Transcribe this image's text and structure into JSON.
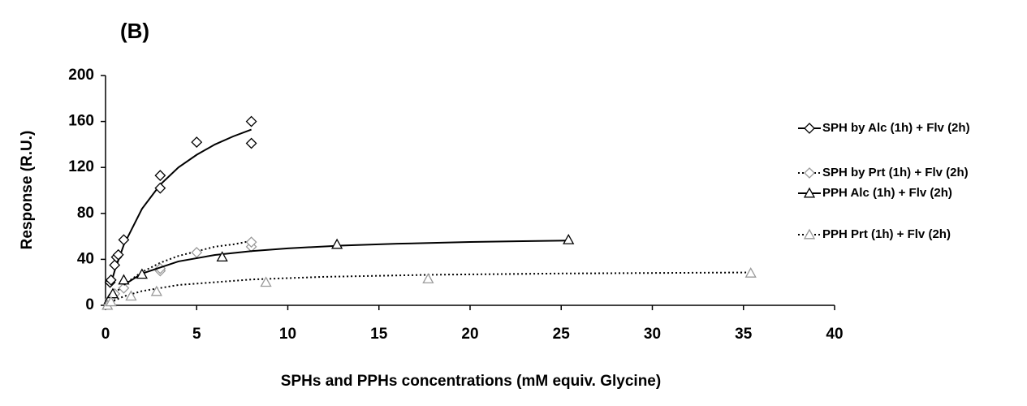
{
  "chart_data": {
    "type": "scatter",
    "title": "(B)",
    "x_label": "SPHs and PPHs concentrations  (mM equiv. Glycine)",
    "y_label": "Response (R.U.)",
    "xlim": [
      0,
      40
    ],
    "xticks": [
      0,
      5,
      10,
      15,
      20,
      25,
      30,
      35,
      40
    ],
    "ylim": [
      0,
      200
    ],
    "yticks": [
      0,
      40,
      80,
      120,
      160,
      200
    ],
    "grid": false,
    "legend": "right",
    "series": [
      {
        "name": "SPH by Alc (1h) + Flv (2h)",
        "color": "#000000",
        "marker": "diamond",
        "line_style": "solid",
        "x": [
          0.25,
          0.3,
          0.5,
          0.6,
          0.7,
          1,
          3,
          3,
          5,
          8,
          8
        ],
        "values": [
          20,
          22,
          35,
          42,
          44,
          57,
          102,
          113,
          142,
          141,
          160
        ],
        "fit_x": [
          0.25,
          0.5,
          1,
          2,
          3,
          4,
          5,
          6,
          7,
          8
        ],
        "fit_values": [
          16.2,
          30,
          52.5,
          84,
          105,
          120,
          131,
          140,
          147,
          153
        ]
      },
      {
        "name": "SPH by Prt (1h) + Flv (2h)",
        "color": "#999999",
        "marker": "diamond",
        "line_style": "dotted",
        "x": [
          0.25,
          0.5,
          1,
          3,
          3,
          5,
          8,
          8
        ],
        "values": [
          5,
          10,
          15,
          30,
          32,
          46,
          51,
          55
        ],
        "fit_x": [
          0.25,
          0.5,
          1,
          2,
          3,
          4,
          5,
          6,
          7,
          8
        ],
        "fit_values": [
          5,
          10,
          18,
          29,
          37,
          43,
          47,
          51,
          53,
          56
        ]
      },
      {
        "name": "PPH Alc (1h) + Flv (2h)",
        "color": "#000000",
        "marker": "triangle",
        "line_style": "solid",
        "x": [
          0.2,
          0.4,
          1,
          2,
          6.4,
          12.7,
          25.4
        ],
        "values": [
          5,
          10,
          22,
          27,
          42,
          53,
          57
        ],
        "fit_x": [
          1,
          2,
          4,
          6,
          8,
          10,
          13,
          16,
          20,
          25.4
        ],
        "fit_values": [
          17.7,
          27.6,
          38.2,
          43.8,
          47.2,
          49.6,
          52,
          53.6,
          55.1,
          56.4
        ]
      },
      {
        "name": "PPH Prt (1h) + Flv (2h)",
        "color": "#999999",
        "marker": "triangle",
        "line_style": "dotted",
        "x": [
          0.1,
          0.3,
          1.4,
          2.8,
          8.8,
          17.7,
          35.4
        ],
        "values": [
          0,
          3,
          8,
          12,
          20,
          23,
          28
        ],
        "fit_x": [
          0.25,
          1,
          2,
          4,
          8,
          12,
          18,
          25,
          35.4
        ],
        "fit_values": [
          2.4,
          7.8,
          12.4,
          17.7,
          22.5,
          24.8,
          26.6,
          27.7,
          28.6
        ]
      }
    ]
  }
}
